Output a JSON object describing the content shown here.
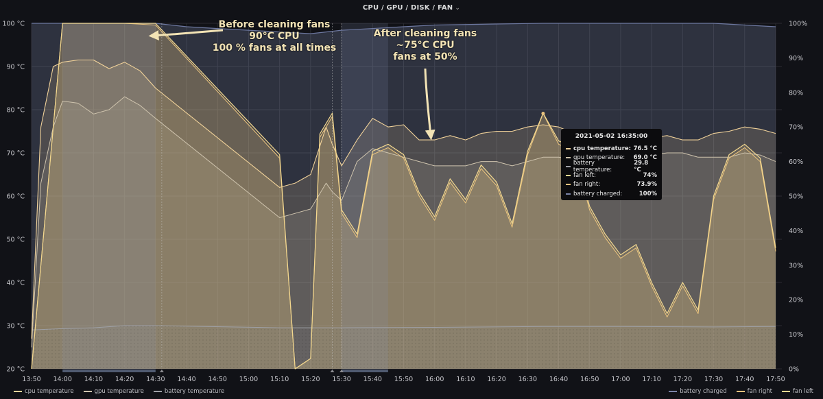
{
  "panel": {
    "title": "CPU / GPU / DISK / FAN",
    "menu_icon": "chevron-down-icon"
  },
  "colors": {
    "background": "#111217",
    "cpu": "#f2d39a",
    "gpu": "#cfc4ae",
    "battery_temp": "#9ea0a6",
    "battery_charged": "#7b84a8",
    "fan_right": "#e8c27d",
    "fan_left": "#f3d88f",
    "annotation": "#f2e3b5"
  },
  "annotations": {
    "before": [
      "Before cleaning fans",
      "90°C CPU",
      "100 % fans at all times"
    ],
    "after": [
      "After cleaning fans",
      "~75°C CPU",
      "fans at 50%"
    ]
  },
  "tooltip": {
    "time": "2021-05-02 16:35:00",
    "rows": [
      {
        "label": "cpu temperature:",
        "value": "76.5 °C",
        "color": "#f2d39a"
      },
      {
        "label": "gpu temperature:",
        "value": "69.0 °C",
        "color": "#cfc4ae"
      },
      {
        "label": "battery temperature:",
        "value": "29.8 °C",
        "color": "#9ea0a6"
      },
      {
        "label": "fan left:",
        "value": "74%",
        "color": "#f3d88f"
      },
      {
        "label": "fan right:",
        "value": "73.9%",
        "color": "#e8c27d"
      },
      {
        "label": "battery charged:",
        "value": "100%",
        "color": "#7b84a8"
      }
    ]
  },
  "legend": {
    "left": [
      {
        "label": "cpu temperature",
        "color": "#f2d39a"
      },
      {
        "label": "gpu temperature",
        "color": "#cfc4ae"
      },
      {
        "label": "battery temperature",
        "color": "#9ea0a6"
      }
    ],
    "right": [
      {
        "label": "battery charged",
        "color": "#7b84a8"
      },
      {
        "label": "fan right",
        "color": "#e8c27d"
      },
      {
        "label": "fan left",
        "color": "#f3d88f"
      }
    ]
  },
  "chart_data": {
    "type": "line",
    "title": "CPU / GPU / DISK / FAN",
    "x_ticks": [
      "13:50",
      "14:00",
      "14:10",
      "14:20",
      "14:30",
      "14:40",
      "14:50",
      "15:00",
      "15:10",
      "15:20",
      "15:30",
      "15:40",
      "15:50",
      "16:00",
      "16:10",
      "16:20",
      "16:30",
      "16:40",
      "16:50",
      "17:00",
      "17:10",
      "17:20",
      "17:30",
      "17:40",
      "17:50"
    ],
    "y_left_ticks": [
      "20 °C",
      "30 °C",
      "40 °C",
      "50 °C",
      "60 °C",
      "70 °C",
      "80 °C",
      "90 °C",
      "100 °C"
    ],
    "y_right_ticks": [
      "0%",
      "10%",
      "20%",
      "30%",
      "40%",
      "50%",
      "60%",
      "70%",
      "80%",
      "90%",
      "100%"
    ],
    "ylim_left": [
      20,
      100
    ],
    "ylim_right": [
      0,
      100
    ],
    "xlim": [
      "13:50",
      "17:52"
    ],
    "grid": true,
    "legend_position": "bottom",
    "series": [
      {
        "name": "cpu temperature",
        "axis": "left",
        "unit": "°C",
        "points": [
          [
            "13:50",
            27
          ],
          [
            "13:53",
            76
          ],
          [
            "13:57",
            90
          ],
          [
            "14:00",
            91
          ],
          [
            "14:05",
            91.5
          ],
          [
            "14:10",
            91.5
          ],
          [
            "14:15",
            89.5
          ],
          [
            "14:20",
            91
          ],
          [
            "14:25",
            89
          ],
          [
            "14:30",
            85
          ],
          [
            "15:10",
            62
          ],
          [
            "15:15",
            63
          ],
          [
            "15:20",
            65
          ],
          [
            "15:25",
            76
          ],
          [
            "15:27",
            72
          ],
          [
            "15:30",
            67
          ],
          [
            "15:35",
            73
          ],
          [
            "15:40",
            78
          ],
          [
            "15:45",
            76
          ],
          [
            "15:50",
            76.5
          ],
          [
            "15:55",
            73
          ],
          [
            "16:00",
            73
          ],
          [
            "16:05",
            74
          ],
          [
            "16:10",
            73
          ],
          [
            "16:15",
            74.5
          ],
          [
            "16:20",
            75
          ],
          [
            "16:25",
            75
          ],
          [
            "16:30",
            76
          ],
          [
            "16:35",
            76.5
          ],
          [
            "16:40",
            76
          ],
          [
            "16:45",
            74.5
          ],
          [
            "16:50",
            75
          ],
          [
            "16:55",
            75
          ],
          [
            "17:00",
            74
          ],
          [
            "17:05",
            74
          ],
          [
            "17:10",
            73.5
          ],
          [
            "17:15",
            74
          ],
          [
            "17:20",
            73
          ],
          [
            "17:25",
            73
          ],
          [
            "17:30",
            74.5
          ],
          [
            "17:35",
            75
          ],
          [
            "17:40",
            76
          ],
          [
            "17:45",
            75.5
          ],
          [
            "17:50",
            74.5
          ]
        ]
      },
      {
        "name": "gpu temperature",
        "axis": "left",
        "unit": "°C",
        "points": [
          [
            "13:50",
            25
          ],
          [
            "13:53",
            63
          ],
          [
            "13:57",
            76
          ],
          [
            "14:00",
            82
          ],
          [
            "14:05",
            81.5
          ],
          [
            "14:10",
            79
          ],
          [
            "14:15",
            80
          ],
          [
            "14:20",
            83
          ],
          [
            "14:25",
            81
          ],
          [
            "14:30",
            78
          ],
          [
            "15:10",
            55
          ],
          [
            "15:15",
            56
          ],
          [
            "15:20",
            57
          ],
          [
            "15:25",
            63
          ],
          [
            "15:27",
            61
          ],
          [
            "15:30",
            59
          ],
          [
            "15:35",
            68
          ],
          [
            "15:40",
            71
          ],
          [
            "15:45",
            70
          ],
          [
            "15:50",
            69
          ],
          [
            "15:55",
            68
          ],
          [
            "16:00",
            67
          ],
          [
            "16:05",
            67
          ],
          [
            "16:10",
            67
          ],
          [
            "16:15",
            68
          ],
          [
            "16:20",
            68
          ],
          [
            "16:25",
            67
          ],
          [
            "16:30",
            68
          ],
          [
            "16:35",
            69
          ],
          [
            "16:40",
            69
          ],
          [
            "16:45",
            68.5
          ],
          [
            "16:50",
            69
          ],
          [
            "16:55",
            70
          ],
          [
            "17:00",
            70
          ],
          [
            "17:05",
            70
          ],
          [
            "17:10",
            69.5
          ],
          [
            "17:15",
            70
          ],
          [
            "17:20",
            70
          ],
          [
            "17:25",
            69
          ],
          [
            "17:30",
            69
          ],
          [
            "17:35",
            69
          ],
          [
            "17:40",
            70
          ],
          [
            "17:45",
            69.5
          ],
          [
            "17:50",
            68
          ]
        ]
      },
      {
        "name": "battery temperature",
        "axis": "left",
        "unit": "°C",
        "points": [
          [
            "13:50",
            29
          ],
          [
            "14:00",
            29.3
          ],
          [
            "14:10",
            29.5
          ],
          [
            "14:20",
            30
          ],
          [
            "14:30",
            30
          ],
          [
            "15:10",
            29.5
          ],
          [
            "15:30",
            29.5
          ],
          [
            "16:00",
            29.6
          ],
          [
            "16:35",
            29.8
          ],
          [
            "17:00",
            29.8
          ],
          [
            "17:30",
            29.7
          ],
          [
            "17:50",
            29.8
          ]
        ]
      },
      {
        "name": "battery charged",
        "axis": "right",
        "unit": "%",
        "points": [
          [
            "13:50",
            100
          ],
          [
            "14:00",
            100
          ],
          [
            "14:30",
            100
          ],
          [
            "14:40",
            99
          ],
          [
            "14:50",
            98.5
          ],
          [
            "15:00",
            98
          ],
          [
            "15:10",
            97.5
          ],
          [
            "15:20",
            97
          ],
          [
            "15:30",
            98
          ],
          [
            "15:40",
            98.5
          ],
          [
            "15:50",
            99
          ],
          [
            "16:00",
            99.5
          ],
          [
            "16:20",
            99.8
          ],
          [
            "16:35",
            100
          ],
          [
            "17:00",
            100
          ],
          [
            "17:30",
            100
          ],
          [
            "17:40",
            99.5
          ],
          [
            "17:50",
            99
          ]
        ]
      },
      {
        "name": "fan right",
        "axis": "right",
        "unit": "%",
        "points": [
          [
            "13:50",
            0
          ],
          [
            "14:00",
            100
          ],
          [
            "14:10",
            100
          ],
          [
            "14:20",
            100
          ],
          [
            "14:30",
            99.5
          ],
          [
            "15:10",
            61
          ],
          [
            "15:15",
            0
          ],
          [
            "15:20",
            3
          ],
          [
            "15:23",
            67
          ],
          [
            "15:27",
            73
          ],
          [
            "15:30",
            45
          ],
          [
            "15:35",
            38
          ],
          [
            "15:40",
            62
          ],
          [
            "15:45",
            64
          ],
          [
            "15:50",
            61
          ],
          [
            "15:55",
            50
          ],
          [
            "16:00",
            43
          ],
          [
            "16:05",
            54
          ],
          [
            "16:10",
            48
          ],
          [
            "16:15",
            58
          ],
          [
            "16:20",
            53
          ],
          [
            "16:25",
            41
          ],
          [
            "16:30",
            62
          ],
          [
            "16:35",
            73.9
          ],
          [
            "16:40",
            65
          ],
          [
            "16:45",
            63
          ],
          [
            "16:50",
            46
          ],
          [
            "16:55",
            38
          ],
          [
            "17:00",
            32
          ],
          [
            "17:05",
            35
          ],
          [
            "17:10",
            24
          ],
          [
            "17:15",
            15
          ],
          [
            "17:20",
            24
          ],
          [
            "17:25",
            16
          ],
          [
            "17:30",
            49
          ],
          [
            "17:35",
            61
          ],
          [
            "17:40",
            64
          ],
          [
            "17:45",
            60
          ],
          [
            "17:50",
            34
          ]
        ]
      },
      {
        "name": "fan left",
        "axis": "right",
        "unit": "%",
        "points": [
          [
            "13:50",
            0
          ],
          [
            "14:00",
            100
          ],
          [
            "14:10",
            100
          ],
          [
            "14:20",
            100
          ],
          [
            "14:30",
            100
          ],
          [
            "15:10",
            62
          ],
          [
            "15:15",
            0
          ],
          [
            "15:20",
            3
          ],
          [
            "15:23",
            68
          ],
          [
            "15:27",
            74
          ],
          [
            "15:30",
            46
          ],
          [
            "15:35",
            39
          ],
          [
            "15:40",
            63
          ],
          [
            "15:45",
            65
          ],
          [
            "15:50",
            62
          ],
          [
            "15:55",
            51
          ],
          [
            "16:00",
            44
          ],
          [
            "16:05",
            55
          ],
          [
            "16:10",
            49
          ],
          [
            "16:15",
            59
          ],
          [
            "16:20",
            54
          ],
          [
            "16:25",
            42
          ],
          [
            "16:30",
            63
          ],
          [
            "16:35",
            74
          ],
          [
            "16:40",
            66
          ],
          [
            "16:45",
            64
          ],
          [
            "16:50",
            47
          ],
          [
            "16:55",
            39
          ],
          [
            "17:00",
            33
          ],
          [
            "17:05",
            36
          ],
          [
            "17:10",
            25
          ],
          [
            "17:15",
            16
          ],
          [
            "17:20",
            25
          ],
          [
            "17:25",
            17
          ],
          [
            "17:30",
            50
          ],
          [
            "17:35",
            62
          ],
          [
            "17:40",
            65
          ],
          [
            "17:45",
            61
          ],
          [
            "17:50",
            35
          ]
        ]
      }
    ],
    "regions": [
      {
        "start": "14:00",
        "end": "14:30"
      },
      {
        "start": "15:30",
        "end": "15:45"
      }
    ],
    "markers": [
      "14:32",
      "15:27",
      "15:30"
    ]
  }
}
